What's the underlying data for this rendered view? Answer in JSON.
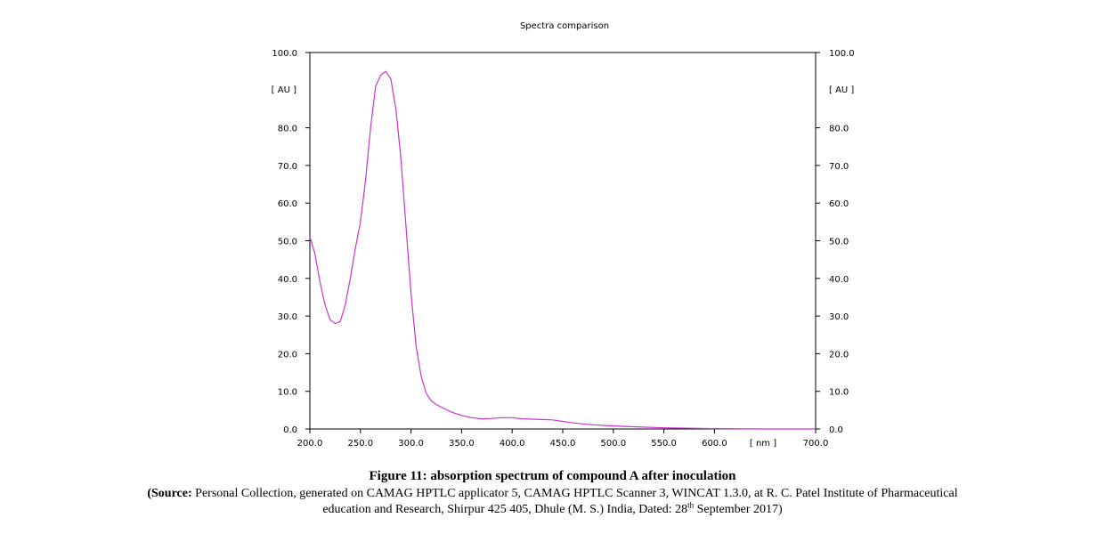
{
  "chart_data": {
    "type": "line",
    "title": "Spectra comparison",
    "xlabel": "[ nm ]",
    "ylabel_left": "[ AU ]",
    "ylabel_right": "[ AU ]",
    "xlim": [
      200,
      700
    ],
    "ylim": [
      0,
      100
    ],
    "x_ticks": [
      "200.0",
      "250.0",
      "300.0",
      "350.0",
      "400.0",
      "450.0",
      "500.0",
      "550.0",
      "600.0",
      "700.0"
    ],
    "y_ticks": [
      "0.0",
      "10.0",
      "20.0",
      "30.0",
      "40.0",
      "50.0",
      "60.0",
      "70.0",
      "80.0",
      "100.0"
    ],
    "grid": false,
    "series": [
      {
        "color": "#cc33cc",
        "x": [
          200,
          205,
          210,
          215,
          220,
          225,
          230,
          235,
          240,
          245,
          250,
          255,
          260,
          265,
          270,
          275,
          280,
          285,
          290,
          295,
          300,
          305,
          310,
          315,
          320,
          325,
          330,
          340,
          350,
          360,
          370,
          380,
          390,
          400,
          410,
          420,
          430,
          440,
          450,
          460,
          480,
          500,
          520,
          550,
          600,
          650,
          700
        ],
        "y": [
          51,
          46.5,
          39,
          33,
          29,
          28,
          28.5,
          33,
          40,
          48,
          55,
          66,
          80,
          91,
          94,
          95,
          93,
          85,
          72,
          54,
          36,
          22,
          14,
          9.5,
          7.5,
          6.5,
          5.8,
          4.5,
          3.6,
          3.0,
          2.7,
          2.8,
          3.0,
          3.0,
          2.7,
          2.6,
          2.5,
          2.4,
          2.0,
          1.6,
          1.1,
          0.8,
          0.6,
          0.3,
          0.1,
          0.0,
          0.0
        ]
      }
    ]
  },
  "caption": {
    "figure_title": "Figure 11: absorption spectrum of compound A after inoculation",
    "source_label": "(Source:",
    "source_line1": " Personal Collection, generated on CAMAG HPTLC applicator 5, CAMAG HPTLC Scanner 3, WINCAT 1.3.0, at R. C. Patel Institute of Pharmaceutical",
    "source_line2_pre": "education and Research, Shirpur 425 405, Dhule (M. S.) India, Dated: 28",
    "source_sup": "th",
    "source_line2_post": " September 2017)"
  }
}
